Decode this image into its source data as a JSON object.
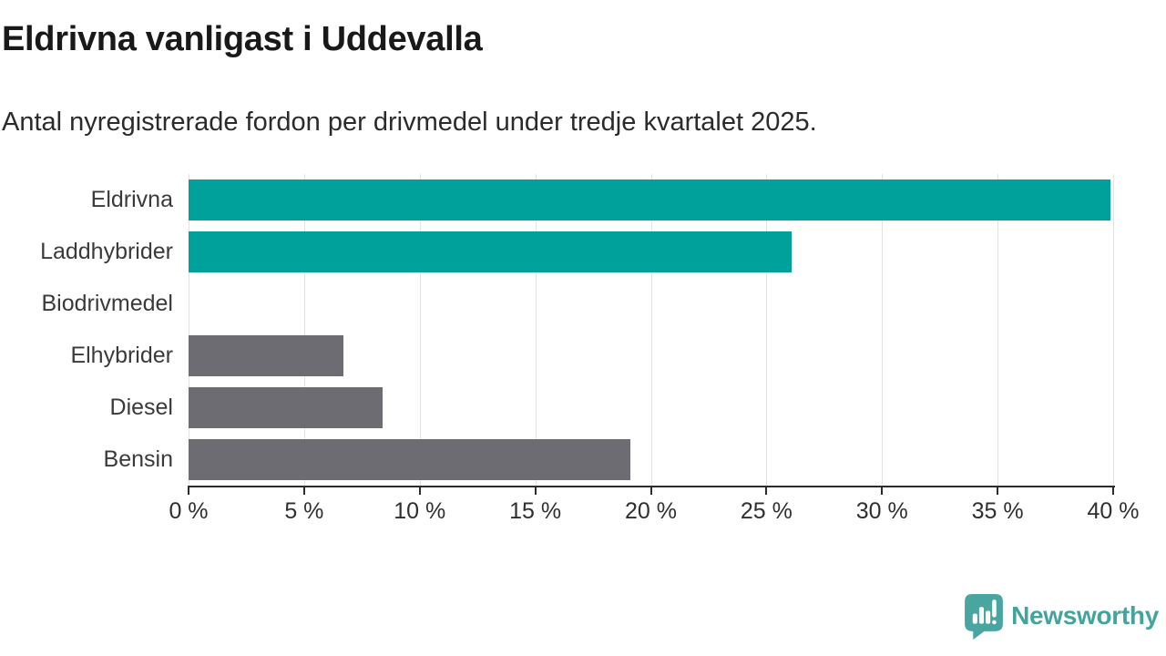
{
  "header": {
    "title": "Eldrivna vanligast i Uddevalla",
    "subtitle": "Antal nyregistrerade fordon per drivmedel under tredje kvartalet 2025."
  },
  "chart_data": {
    "type": "bar",
    "orientation": "horizontal",
    "categories": [
      "Eldrivna",
      "Laddhybrider",
      "Biodrivmedel",
      "Elhybrider",
      "Diesel",
      "Bensin"
    ],
    "values": [
      39.9,
      26.1,
      0,
      6.7,
      8.4,
      19.1
    ],
    "unit": "%",
    "bar_colors": [
      "#00a19a",
      "#00a19a",
      "#6c6c72",
      "#6c6c72",
      "#6c6c72",
      "#6c6c72"
    ],
    "xlim": [
      0,
      40
    ],
    "x_tick_step": 5,
    "x_tick_labels": [
      "0 %",
      "5 %",
      "10 %",
      "15 %",
      "20 %",
      "25 %",
      "30 %",
      "35 %",
      "40 %"
    ],
    "grid": true,
    "legend": false,
    "xlabel": "",
    "ylabel": ""
  },
  "branding": {
    "logo_text": "Newsworthy",
    "logo_color": "#48a5a0",
    "logo_text_color": "#45a39d",
    "accent_color": "#00a19a",
    "muted_bar_color": "#6c6c72"
  }
}
